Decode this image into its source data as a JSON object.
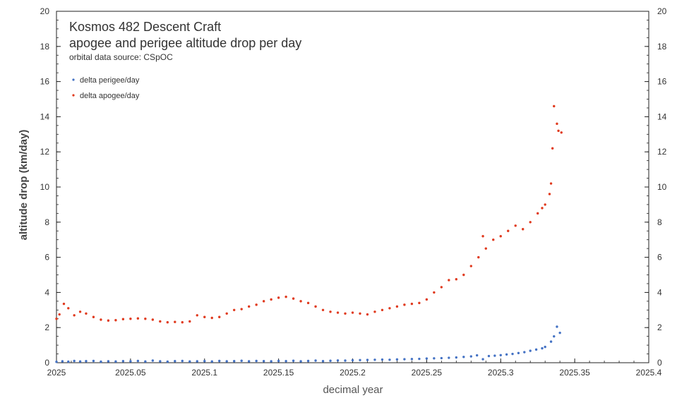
{
  "chart_data": {
    "type": "scatter",
    "title": "Kosmos 482 Descent Craft",
    "subtitle": "apogee and perigee altitude drop per day",
    "source": "orbital data source:  CSpOC",
    "xlabel": "decimal year",
    "ylabel": "altitude drop (km/day)",
    "xlim": [
      2025,
      2025.4
    ],
    "ylim": [
      0,
      20
    ],
    "x_ticks": [
      "2025",
      "2025.05",
      "2025.1",
      "2025.15",
      "2025.2",
      "2025.25",
      "2025.3",
      "2025.35",
      "2025.4"
    ],
    "y_ticks": [
      "0",
      "2",
      "4",
      "6",
      "8",
      "10",
      "12",
      "14",
      "16",
      "18",
      "20"
    ],
    "legend_position": "top-left",
    "grid": false,
    "series": [
      {
        "name": "delta perigee/day",
        "color": "#4472c4",
        "points": [
          [
            2025.0,
            0.05
          ],
          [
            2025.004,
            0.08
          ],
          [
            2025.008,
            0.06
          ],
          [
            2025.012,
            0.1
          ],
          [
            2025.016,
            0.07
          ],
          [
            2025.02,
            0.09
          ],
          [
            2025.025,
            0.1
          ],
          [
            2025.03,
            0.06
          ],
          [
            2025.035,
            0.08
          ],
          [
            2025.04,
            0.07
          ],
          [
            2025.045,
            0.09
          ],
          [
            2025.05,
            0.08
          ],
          [
            2025.055,
            0.1
          ],
          [
            2025.06,
            0.07
          ],
          [
            2025.065,
            0.12
          ],
          [
            2025.07,
            0.08
          ],
          [
            2025.075,
            0.06
          ],
          [
            2025.08,
            0.09
          ],
          [
            2025.085,
            0.1
          ],
          [
            2025.09,
            0.07
          ],
          [
            2025.095,
            0.08
          ],
          [
            2025.1,
            0.09
          ],
          [
            2025.105,
            0.07
          ],
          [
            2025.11,
            0.1
          ],
          [
            2025.115,
            0.08
          ],
          [
            2025.12,
            0.09
          ],
          [
            2025.125,
            0.11
          ],
          [
            2025.13,
            0.08
          ],
          [
            2025.135,
            0.1
          ],
          [
            2025.14,
            0.09
          ],
          [
            2025.145,
            0.08
          ],
          [
            2025.15,
            0.1
          ],
          [
            2025.155,
            0.09
          ],
          [
            2025.16,
            0.11
          ],
          [
            2025.165,
            0.08
          ],
          [
            2025.17,
            0.1
          ],
          [
            2025.175,
            0.12
          ],
          [
            2025.18,
            0.09
          ],
          [
            2025.185,
            0.11
          ],
          [
            2025.19,
            0.13
          ],
          [
            2025.195,
            0.12
          ],
          [
            2025.2,
            0.14
          ],
          [
            2025.205,
            0.15
          ],
          [
            2025.21,
            0.16
          ],
          [
            2025.215,
            0.17
          ],
          [
            2025.22,
            0.18
          ],
          [
            2025.225,
            0.17
          ],
          [
            2025.23,
            0.19
          ],
          [
            2025.235,
            0.2
          ],
          [
            2025.24,
            0.21
          ],
          [
            2025.245,
            0.22
          ],
          [
            2025.25,
            0.24
          ],
          [
            2025.255,
            0.25
          ],
          [
            2025.26,
            0.26
          ],
          [
            2025.265,
            0.28
          ],
          [
            2025.27,
            0.3
          ],
          [
            2025.275,
            0.33
          ],
          [
            2025.28,
            0.36
          ],
          [
            2025.284,
            0.42
          ],
          [
            2025.288,
            0.2
          ],
          [
            2025.292,
            0.38
          ],
          [
            2025.296,
            0.4
          ],
          [
            2025.3,
            0.43
          ],
          [
            2025.304,
            0.47
          ],
          [
            2025.308,
            0.5
          ],
          [
            2025.312,
            0.55
          ],
          [
            2025.316,
            0.6
          ],
          [
            2025.32,
            0.68
          ],
          [
            2025.324,
            0.75
          ],
          [
            2025.328,
            0.82
          ],
          [
            2025.33,
            0.9
          ],
          [
            2025.334,
            1.2
          ],
          [
            2025.336,
            1.5
          ],
          [
            2025.338,
            2.05
          ],
          [
            2025.34,
            1.7
          ]
        ]
      },
      {
        "name": "delta apogee/day",
        "color": "#e03a1e",
        "points": [
          [
            2025.0,
            2.5
          ],
          [
            2025.002,
            2.75
          ],
          [
            2025.005,
            3.35
          ],
          [
            2025.008,
            3.1
          ],
          [
            2025.012,
            2.7
          ],
          [
            2025.016,
            2.9
          ],
          [
            2025.02,
            2.8
          ],
          [
            2025.025,
            2.6
          ],
          [
            2025.03,
            2.45
          ],
          [
            2025.035,
            2.4
          ],
          [
            2025.04,
            2.42
          ],
          [
            2025.045,
            2.48
          ],
          [
            2025.05,
            2.5
          ],
          [
            2025.055,
            2.52
          ],
          [
            2025.06,
            2.5
          ],
          [
            2025.065,
            2.45
          ],
          [
            2025.07,
            2.35
          ],
          [
            2025.075,
            2.3
          ],
          [
            2025.08,
            2.32
          ],
          [
            2025.085,
            2.3
          ],
          [
            2025.09,
            2.35
          ],
          [
            2025.095,
            2.7
          ],
          [
            2025.1,
            2.6
          ],
          [
            2025.105,
            2.55
          ],
          [
            2025.11,
            2.6
          ],
          [
            2025.115,
            2.8
          ],
          [
            2025.12,
            3.0
          ],
          [
            2025.125,
            3.05
          ],
          [
            2025.13,
            3.2
          ],
          [
            2025.135,
            3.3
          ],
          [
            2025.14,
            3.5
          ],
          [
            2025.145,
            3.6
          ],
          [
            2025.15,
            3.7
          ],
          [
            2025.155,
            3.75
          ],
          [
            2025.16,
            3.65
          ],
          [
            2025.165,
            3.5
          ],
          [
            2025.17,
            3.4
          ],
          [
            2025.175,
            3.2
          ],
          [
            2025.18,
            3.0
          ],
          [
            2025.185,
            2.9
          ],
          [
            2025.19,
            2.85
          ],
          [
            2025.195,
            2.8
          ],
          [
            2025.2,
            2.85
          ],
          [
            2025.205,
            2.8
          ],
          [
            2025.21,
            2.75
          ],
          [
            2025.215,
            2.9
          ],
          [
            2025.22,
            3.0
          ],
          [
            2025.225,
            3.1
          ],
          [
            2025.23,
            3.2
          ],
          [
            2025.235,
            3.3
          ],
          [
            2025.24,
            3.35
          ],
          [
            2025.245,
            3.4
          ],
          [
            2025.25,
            3.6
          ],
          [
            2025.255,
            4.0
          ],
          [
            2025.26,
            4.3
          ],
          [
            2025.265,
            4.7
          ],
          [
            2025.27,
            4.75
          ],
          [
            2025.275,
            5.0
          ],
          [
            2025.28,
            5.5
          ],
          [
            2025.285,
            6.0
          ],
          [
            2025.288,
            7.2
          ],
          [
            2025.29,
            6.5
          ],
          [
            2025.295,
            7.0
          ],
          [
            2025.3,
            7.2
          ],
          [
            2025.305,
            7.5
          ],
          [
            2025.31,
            7.8
          ],
          [
            2025.315,
            7.6
          ],
          [
            2025.32,
            8.0
          ],
          [
            2025.325,
            8.5
          ],
          [
            2025.328,
            8.8
          ],
          [
            2025.33,
            9.0
          ],
          [
            2025.333,
            9.6
          ],
          [
            2025.334,
            10.2
          ],
          [
            2025.335,
            12.2
          ],
          [
            2025.336,
            14.6
          ],
          [
            2025.338,
            13.6
          ],
          [
            2025.339,
            13.2
          ],
          [
            2025.341,
            13.1
          ]
        ]
      }
    ]
  }
}
